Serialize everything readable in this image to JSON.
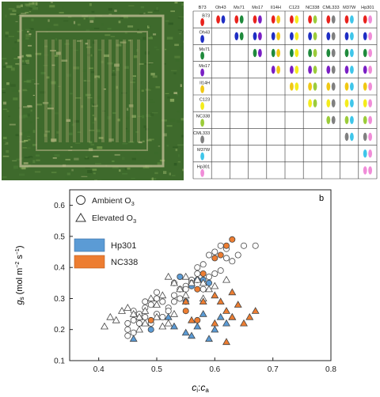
{
  "figure": {
    "panel_letter": "b"
  },
  "crossing_diagram": {
    "lines": [
      "B73",
      "Oh43",
      "Ms71",
      "Mo17",
      "Il14H",
      "C123",
      "NC338",
      "CML333",
      "M37W",
      "Hp301"
    ],
    "colors": {
      "B73": "#e8221c",
      "Oh43": "#1f2ec4",
      "Ms71": "#1f8a3c",
      "Mo17": "#7a1fc4",
      "Il14H": "#f0c814",
      "C123": "#f4ec1c",
      "NC338": "#9ccc3a",
      "CML333": "#808080",
      "M37W": "#3fc6ea",
      "Hp301": "#f08cd8"
    }
  },
  "chart_data": {
    "type": "scatter",
    "title": "",
    "xlabel": "ci:ca",
    "ylabel": "gs (mol m-2 s-1)",
    "xlim": [
      0.35,
      0.8
    ],
    "ylim": [
      0.1,
      0.65
    ],
    "xticks": [
      "0.4",
      "0.5",
      "0.6",
      "0.7",
      "0.8"
    ],
    "yticks": [
      "0.1",
      "0.2",
      "0.3",
      "0.4",
      "0.5",
      "0.6"
    ],
    "grid": false,
    "legend": {
      "position": "top-left",
      "entries": [
        {
          "label": "Ambient O",
          "sub": "3",
          "marker": "circle"
        },
        {
          "label": "Elevated O",
          "sub": "3",
          "marker": "triangle"
        },
        {
          "label": "Hp301",
          "swatch": "#5b9bd5"
        },
        {
          "label": "NC338",
          "swatch": "#ed7d31"
        }
      ]
    },
    "colors": {
      "other": "#ffffff",
      "Hp301": "#5b9bd5",
      "NC338": "#ed7d31",
      "edge": "#444444"
    },
    "series": [
      {
        "name": "Ambient O3",
        "marker": "circle",
        "group": "other",
        "points": [
          [
            0.46,
            0.26
          ],
          [
            0.47,
            0.25
          ],
          [
            0.48,
            0.27
          ],
          [
            0.49,
            0.28
          ],
          [
            0.5,
            0.3
          ],
          [
            0.51,
            0.29
          ],
          [
            0.52,
            0.27
          ],
          [
            0.53,
            0.31
          ],
          [
            0.54,
            0.33
          ],
          [
            0.55,
            0.34
          ],
          [
            0.56,
            0.36
          ],
          [
            0.57,
            0.38
          ],
          [
            0.58,
            0.41
          ],
          [
            0.59,
            0.44
          ],
          [
            0.6,
            0.45
          ],
          [
            0.61,
            0.47
          ],
          [
            0.62,
            0.46
          ],
          [
            0.63,
            0.42
          ],
          [
            0.64,
            0.44
          ],
          [
            0.65,
            0.47
          ],
          [
            0.67,
            0.47
          ],
          [
            0.45,
            0.2
          ],
          [
            0.45,
            0.22
          ],
          [
            0.45,
            0.18
          ],
          [
            0.46,
            0.23
          ],
          [
            0.47,
            0.22
          ],
          [
            0.48,
            0.24
          ],
          [
            0.49,
            0.22
          ],
          [
            0.5,
            0.25
          ],
          [
            0.51,
            0.24
          ],
          [
            0.52,
            0.26
          ],
          [
            0.53,
            0.29
          ],
          [
            0.54,
            0.3
          ],
          [
            0.55,
            0.33
          ],
          [
            0.56,
            0.35
          ],
          [
            0.57,
            0.4
          ],
          [
            0.58,
            0.33
          ],
          [
            0.59,
            0.37
          ],
          [
            0.6,
            0.38
          ],
          [
            0.61,
            0.39
          ],
          [
            0.62,
            0.43
          ],
          [
            0.48,
            0.29
          ],
          [
            0.5,
            0.32
          ],
          [
            0.53,
            0.35
          ],
          [
            0.46,
            0.19
          ]
        ]
      },
      {
        "name": "Ambient O3",
        "marker": "circle",
        "group": "Hp301",
        "points": [
          [
            0.49,
            0.2
          ],
          [
            0.54,
            0.37
          ],
          [
            0.55,
            0.29
          ],
          [
            0.56,
            0.34
          ],
          [
            0.57,
            0.36
          ],
          [
            0.58,
            0.36
          ],
          [
            0.59,
            0.35
          ]
        ]
      },
      {
        "name": "Ambient O3",
        "marker": "circle",
        "group": "NC338",
        "points": [
          [
            0.49,
            0.23
          ],
          [
            0.55,
            0.26
          ],
          [
            0.57,
            0.33
          ],
          [
            0.58,
            0.38
          ],
          [
            0.6,
            0.43
          ],
          [
            0.61,
            0.44
          ],
          [
            0.63,
            0.49
          ],
          [
            0.62,
            0.47
          ],
          [
            0.57,
            0.23
          ]
        ]
      },
      {
        "name": "Elevated O3",
        "marker": "triangle",
        "group": "other",
        "points": [
          [
            0.41,
            0.21
          ],
          [
            0.42,
            0.24
          ],
          [
            0.43,
            0.23
          ],
          [
            0.44,
            0.26
          ],
          [
            0.45,
            0.27
          ],
          [
            0.46,
            0.25
          ],
          [
            0.47,
            0.24
          ],
          [
            0.48,
            0.26
          ],
          [
            0.49,
            0.3
          ],
          [
            0.5,
            0.28
          ],
          [
            0.51,
            0.31
          ],
          [
            0.52,
            0.37
          ],
          [
            0.53,
            0.35
          ],
          [
            0.54,
            0.33
          ],
          [
            0.55,
            0.37
          ],
          [
            0.56,
            0.35
          ],
          [
            0.57,
            0.36
          ],
          [
            0.58,
            0.35
          ],
          [
            0.59,
            0.33
          ],
          [
            0.6,
            0.34
          ],
          [
            0.51,
            0.21
          ],
          [
            0.52,
            0.22
          ],
          [
            0.53,
            0.25
          ],
          [
            0.48,
            0.22
          ],
          [
            0.47,
            0.2
          ],
          [
            0.5,
            0.24
          ],
          [
            0.55,
            0.31
          ],
          [
            0.58,
            0.3
          ],
          [
            0.62,
            0.36
          ]
        ]
      },
      {
        "name": "Elevated O3",
        "marker": "triangle",
        "group": "Hp301",
        "points": [
          [
            0.46,
            0.17
          ],
          [
            0.52,
            0.24
          ],
          [
            0.53,
            0.21
          ],
          [
            0.55,
            0.19
          ],
          [
            0.56,
            0.18
          ],
          [
            0.57,
            0.21
          ],
          [
            0.58,
            0.25
          ],
          [
            0.59,
            0.17
          ],
          [
            0.6,
            0.2
          ],
          [
            0.61,
            0.24
          ],
          [
            0.62,
            0.22
          ],
          [
            0.63,
            0.24
          ]
        ]
      },
      {
        "name": "Elevated O3",
        "marker": "triangle",
        "group": "NC338",
        "points": [
          [
            0.55,
            0.29
          ],
          [
            0.56,
            0.23
          ],
          [
            0.58,
            0.29
          ],
          [
            0.6,
            0.22
          ],
          [
            0.61,
            0.29
          ],
          [
            0.62,
            0.26
          ],
          [
            0.62,
            0.16
          ],
          [
            0.63,
            0.32
          ],
          [
            0.64,
            0.28
          ],
          [
            0.65,
            0.22
          ],
          [
            0.66,
            0.24
          ],
          [
            0.67,
            0.26
          ],
          [
            0.6,
            0.31
          ],
          [
            0.63,
            0.24
          ]
        ]
      }
    ]
  }
}
